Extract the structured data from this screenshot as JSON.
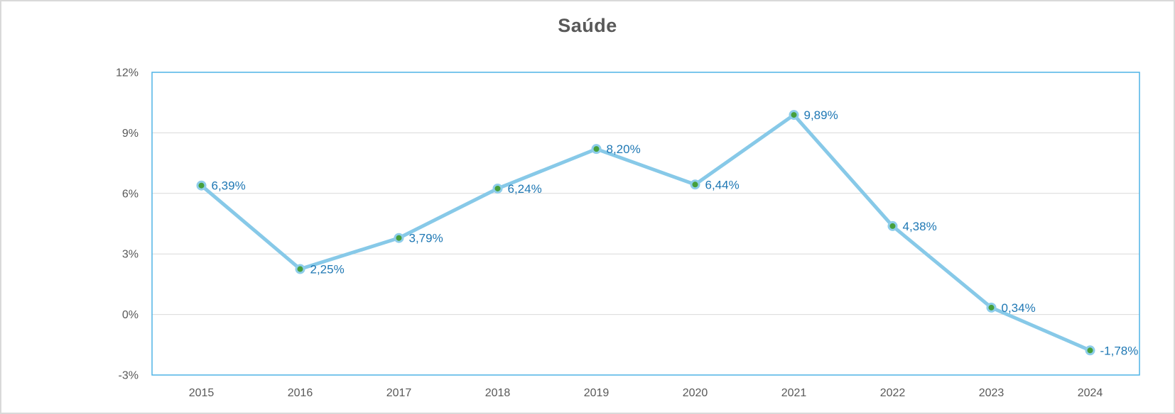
{
  "chart_data": {
    "type": "line",
    "title": "Saúde",
    "categories": [
      "2015",
      "2016",
      "2017",
      "2018",
      "2019",
      "2020",
      "2021",
      "2022",
      "2023",
      "2024"
    ],
    "values": [
      6.39,
      2.25,
      3.79,
      6.24,
      8.2,
      6.44,
      9.89,
      4.38,
      0.34,
      -1.78
    ],
    "point_labels": [
      "6,39%",
      "2,25%",
      "3,79%",
      "6,24%",
      "8,20%",
      "6,44%",
      "9,89%",
      "4,38%",
      "0,34%",
      "-1,78%"
    ],
    "yticks": [
      {
        "value": 12,
        "label": "12%"
      },
      {
        "value": 9,
        "label": "9%"
      },
      {
        "value": 6,
        "label": "6%"
      },
      {
        "value": 3,
        "label": "3%"
      },
      {
        "value": 0,
        "label": "0%"
      },
      {
        "value": -3,
        "label": "-3%"
      }
    ],
    "ylim": [
      -3,
      12
    ],
    "xlabel": "",
    "ylabel": "",
    "grid": true,
    "legend": false,
    "colors": {
      "line": "#87C9E8",
      "marker_fill": "#46A03C",
      "marker_ring": "#8ECDEA",
      "data_label": "#1F78B4",
      "axis_text": "#595959",
      "gridline": "#D9D9D9",
      "plot_border": "#4FB3E6",
      "title": "#595959",
      "background": "#FFFFFF"
    }
  }
}
